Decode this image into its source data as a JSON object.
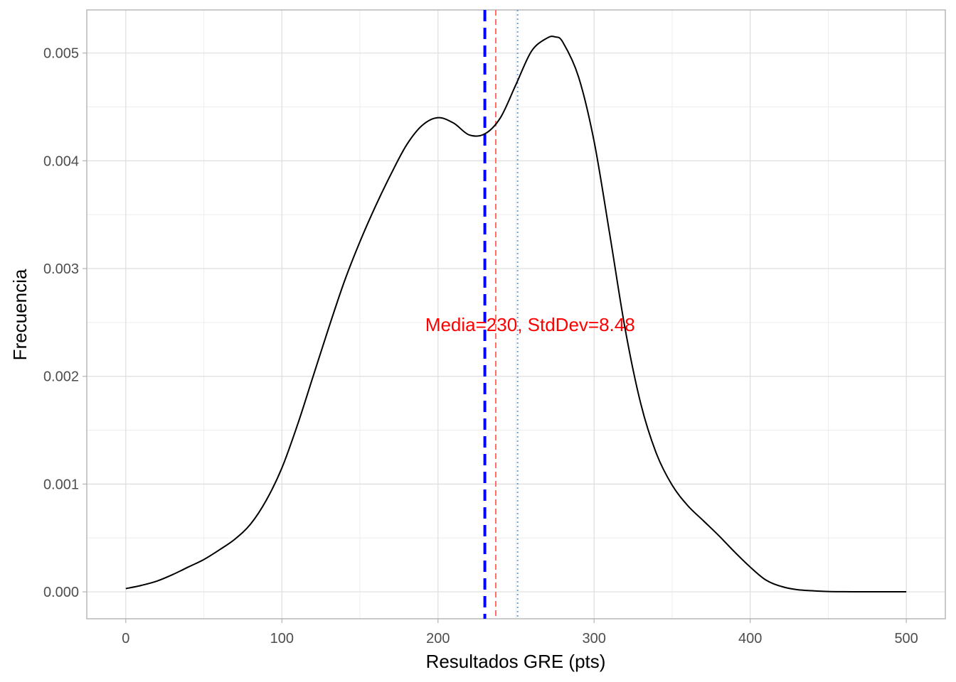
{
  "chart_data": {
    "type": "line",
    "title": "",
    "xlabel": "Resultados GRE (pts)",
    "ylabel": "Frecuencia",
    "xlim": [
      -25,
      525
    ],
    "ylim": [
      -0.00025,
      0.0054
    ],
    "x_major_ticks": [
      0,
      100,
      200,
      300,
      400,
      500
    ],
    "x_tick_labels": [
      "0",
      "100",
      "200",
      "300",
      "400",
      "500"
    ],
    "x_minor_ticks": [
      50,
      150,
      250,
      350,
      450
    ],
    "y_major_ticks": [
      0,
      0.001,
      0.002,
      0.003,
      0.004,
      0.005
    ],
    "y_tick_labels": [
      "0.000",
      "0.001",
      "0.002",
      "0.003",
      "0.004",
      "0.005"
    ],
    "y_minor_ticks": [
      0.0005,
      0.0015,
      0.0025,
      0.0035,
      0.0045
    ],
    "grid": true,
    "series": [
      {
        "name": "density",
        "color": "#000000",
        "x": [
          0,
          10,
          20,
          30,
          40,
          50,
          60,
          70,
          80,
          90,
          100,
          110,
          120,
          130,
          140,
          150,
          160,
          170,
          180,
          190,
          200,
          210,
          220,
          230,
          240,
          250,
          260,
          270,
          275,
          280,
          290,
          300,
          310,
          320,
          330,
          340,
          350,
          360,
          370,
          380,
          390,
          400,
          410,
          420,
          430,
          440,
          450,
          460,
          470,
          480,
          490,
          500
        ],
        "y": [
          3e-05,
          6e-05,
          0.0001,
          0.00016,
          0.00023,
          0.0003,
          0.00039,
          0.00049,
          0.00063,
          0.00085,
          0.00115,
          0.00155,
          0.002,
          0.00245,
          0.00288,
          0.00325,
          0.00358,
          0.00388,
          0.00415,
          0.00433,
          0.0044,
          0.00435,
          0.00424,
          0.00425,
          0.0044,
          0.00471,
          0.00502,
          0.00514,
          0.00515,
          0.0051,
          0.00478,
          0.00418,
          0.00332,
          0.00243,
          0.00174,
          0.00128,
          0.00099,
          0.0008,
          0.00066,
          0.00052,
          0.00037,
          0.00023,
          0.00011,
          5e-05,
          2e-05,
          1e-05,
          3e-06,
          1e-06,
          5e-07,
          3e-07,
          2e-07,
          1e-07
        ]
      }
    ],
    "vlines": [
      {
        "name": "mean-line",
        "x": 230,
        "color": "#0000ff",
        "style": "dashed",
        "width": "thick"
      },
      {
        "name": "orange-line",
        "x": 237,
        "color": "#ff6f61",
        "style": "dashed",
        "width": "thin"
      },
      {
        "name": "median-line",
        "x": 251,
        "color": "#6f9ad8",
        "style": "dotted",
        "width": "thin"
      }
    ],
    "annotations": [
      {
        "text": "Media=230, StdDev=8.48",
        "x": 259,
        "y": 0.00248,
        "color": "#ff0000"
      }
    ]
  }
}
